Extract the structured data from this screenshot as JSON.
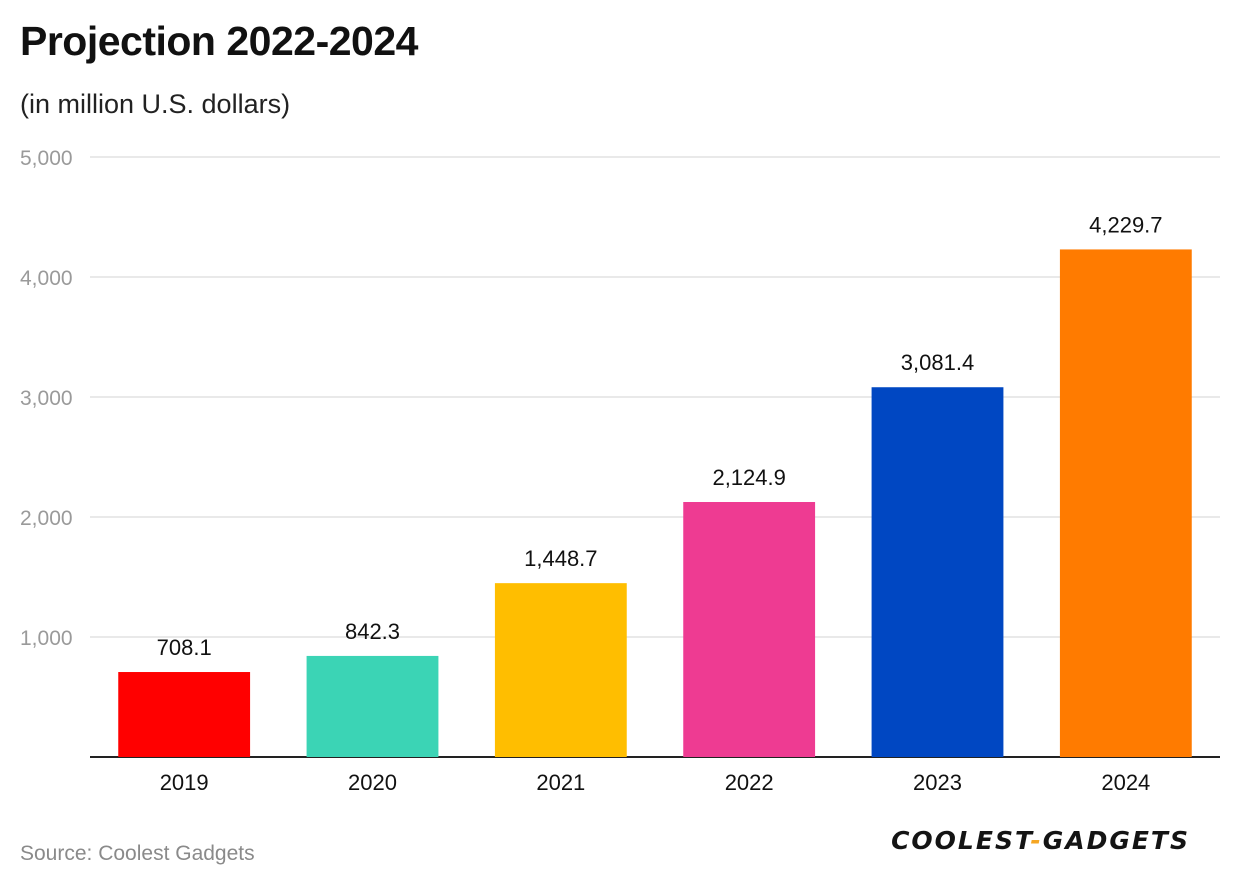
{
  "chart_data": {
    "type": "bar",
    "title": "Projection 2022-2024",
    "subtitle": "(in million U.S. dollars)",
    "categories": [
      "2019",
      "2020",
      "2021",
      "2022",
      "2023",
      "2024"
    ],
    "values": [
      708.1,
      842.3,
      1448.7,
      2124.9,
      3081.4,
      4229.7
    ],
    "value_labels": [
      "708.1",
      "842.3",
      "1,448.7",
      "2,124.9",
      "3,081.4",
      "4,229.7"
    ],
    "colors": [
      "#ff0000",
      "#3bd4b5",
      "#ffbe00",
      "#ee3b92",
      "#0047c2",
      "#ff7b00"
    ],
    "ylim": [
      0,
      5000
    ],
    "yticks": [
      1000,
      2000,
      3000,
      4000,
      5000
    ],
    "ytick_labels": [
      "1,000",
      "2,000",
      "3,000",
      "4,000",
      "5,000"
    ],
    "xlabel": "",
    "ylabel": "",
    "grid": true,
    "legend": "none"
  },
  "footer": {
    "source": "Source: Coolest Gadgets",
    "brand_left": "COOLEST",
    "brand_dash": "-",
    "brand_right": "GADGETS"
  }
}
